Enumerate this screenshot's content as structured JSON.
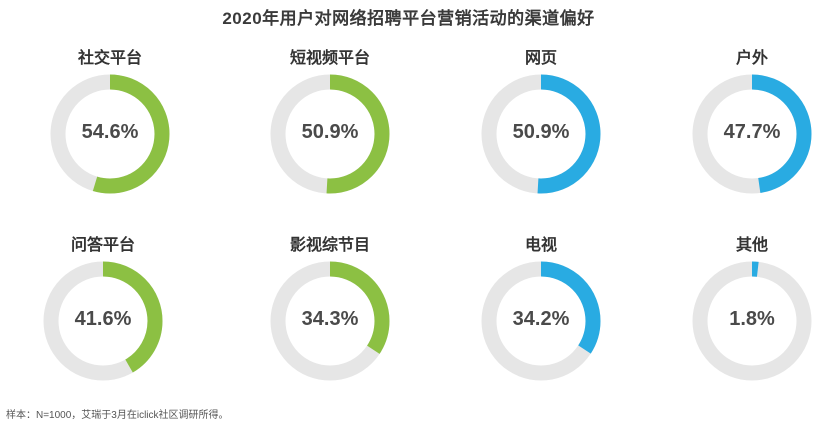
{
  "title": "2020年用户对网络招聘平台营销活动的渠道偏好",
  "footnote": "样本：N=1000，艾瑞于3月在iclick社区调研所得。",
  "colors": {
    "green": "#8cc043",
    "blue": "#29abe2",
    "track": "#e6e6e6"
  },
  "chart_data": {
    "type": "pie",
    "title": "2020年用户对网络招聘平台营销活动的渠道偏好",
    "unit": "%",
    "items": [
      {
        "label": "社交平台",
        "value": 54.6,
        "display": "54.6%",
        "color": "#8cc043"
      },
      {
        "label": "短视频平台",
        "value": 50.9,
        "display": "50.9%",
        "color": "#8cc043"
      },
      {
        "label": "网页",
        "value": 50.9,
        "display": "50.9%",
        "color": "#29abe2"
      },
      {
        "label": "户外",
        "value": 47.7,
        "display": "47.7%",
        "color": "#29abe2"
      },
      {
        "label": "问答平台",
        "value": 41.6,
        "display": "41.6%",
        "color": "#8cc043"
      },
      {
        "label": "影视综节目",
        "value": 34.3,
        "display": "34.3%",
        "color": "#8cc043"
      },
      {
        "label": "电视",
        "value": 34.2,
        "display": "34.2%",
        "color": "#29abe2"
      },
      {
        "label": "其他",
        "value": 1.8,
        "display": "1.8%",
        "color": "#29abe2"
      }
    ]
  }
}
